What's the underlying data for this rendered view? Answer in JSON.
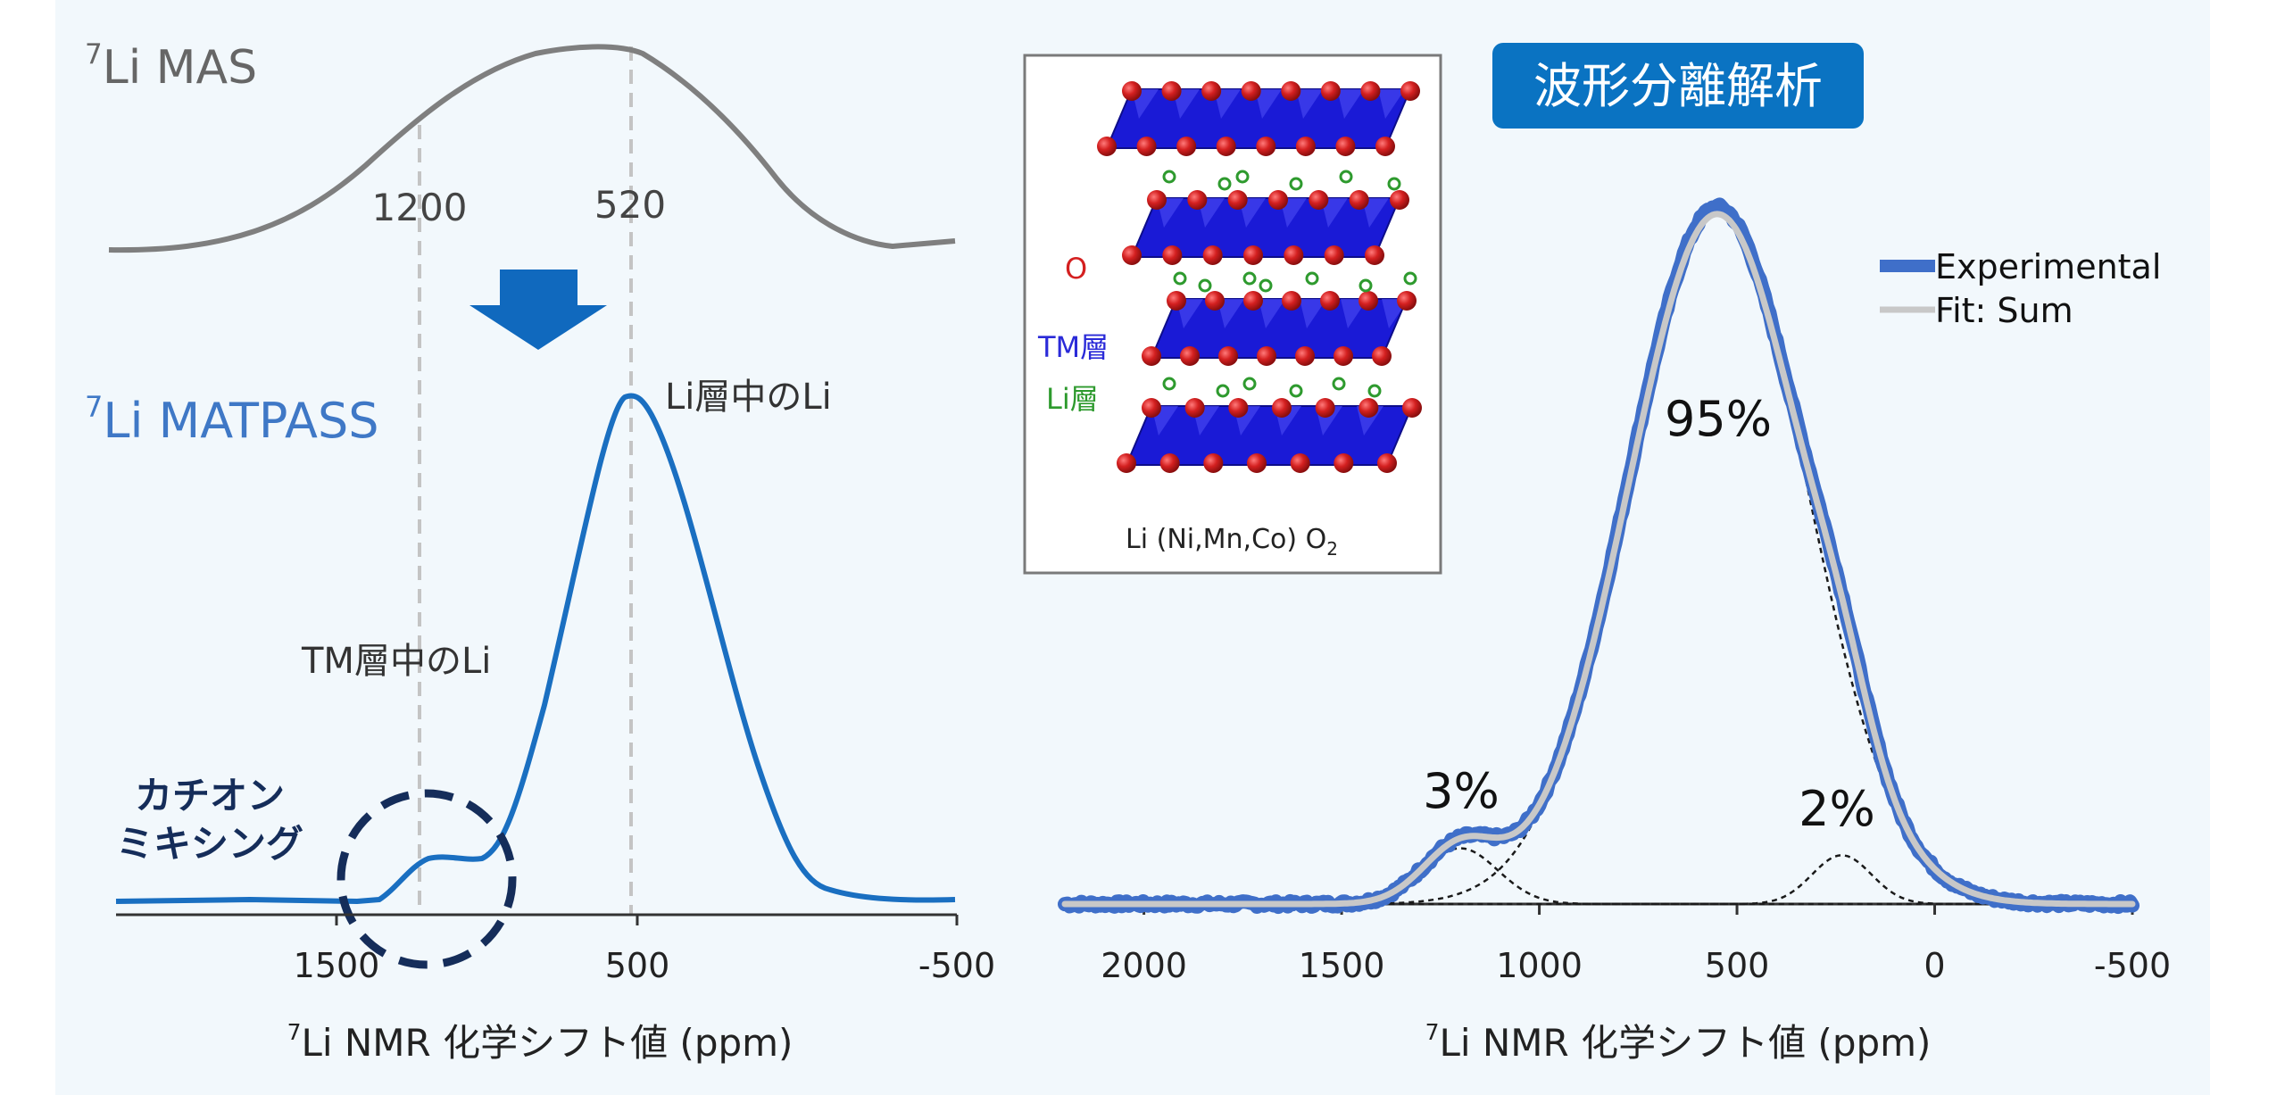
{
  "left_panel": {
    "mas_label": {
      "sup": "7",
      "main": "Li MAS"
    },
    "matpass_label": {
      "sup": "7",
      "main": "Li MATPASS"
    },
    "peak_labels": [
      "1200",
      "520"
    ],
    "arrow_color": "#1069be",
    "annotation_li_layer": "Li層中のLi",
    "annotation_tm_layer": "TM層中のLi",
    "cation_mixing_lines": [
      "カチオン",
      "ミキシング"
    ],
    "xaxis": {
      "ticks": [
        "1500",
        "500",
        "-500"
      ],
      "label_sup": "7",
      "label_main": "Li NMR 化学シフト値 (ppm)"
    }
  },
  "inset": {
    "legend_o": "O",
    "legend_tm": "TM層",
    "legend_li": "Li層",
    "caption_main": "Li (Ni,Mn,Co) O",
    "caption_sub": "2",
    "colors": {
      "o": "#d42020",
      "tm": "#2a2ad8",
      "li": "#2e9a2e"
    }
  },
  "right_panel": {
    "badge": "波形分離解析",
    "badge_color": "#0a73c2",
    "legend": [
      "Experimental",
      "Fit: Sum"
    ],
    "percent_labels": [
      "95%",
      "3%",
      "2%"
    ],
    "xaxis": {
      "ticks": [
        "2000",
        "1500",
        "1000",
        "500",
        "0",
        "-500"
      ],
      "label_sup": "7",
      "label_main": "Li NMR 化学シフト値 (ppm)"
    }
  },
  "chart_data": [
    {
      "type": "line",
      "name": "7Li MAS",
      "x": [
        2000,
        1500,
        1200,
        800,
        520,
        200,
        -100,
        -500
      ],
      "y": [
        0.02,
        0.35,
        0.74,
        0.97,
        1.0,
        0.55,
        0.12,
        0.04
      ],
      "xlim": [
        2000,
        -500
      ],
      "vlines": [
        1200,
        520
      ],
      "color": "#808080"
    },
    {
      "type": "line",
      "name": "7Li MATPASS",
      "x": [
        2000,
        1500,
        1350,
        1250,
        1200,
        1050,
        900,
        700,
        520,
        300,
        100,
        -100,
        -500
      ],
      "y": [
        0.0,
        0.0,
        0.01,
        0.09,
        0.12,
        0.12,
        0.3,
        0.7,
        1.0,
        0.6,
        0.15,
        0.02,
        0.0
      ],
      "xlim": [
        2000,
        -500
      ],
      "xticks": [
        1500,
        500,
        -500
      ],
      "color": "#1a6fc1"
    },
    {
      "type": "line",
      "title": "波形分離解析",
      "xlim": [
        2200,
        -500
      ],
      "xticks": [
        2000,
        1500,
        1000,
        500,
        0,
        -500
      ],
      "series": [
        {
          "name": "Experimental",
          "color": "#3f6fc9",
          "x": [
            2200,
            1500,
            1350,
            1200,
            1050,
            900,
            750,
            550,
            400,
            300,
            150,
            0,
            -500
          ],
          "y": [
            0.0,
            0.005,
            0.05,
            0.09,
            0.09,
            0.35,
            0.78,
            1.0,
            0.72,
            0.42,
            0.12,
            0.01,
            0.0
          ]
        },
        {
          "name": "Fit: Sum",
          "color": "#c8c8c8",
          "x": [
            2200,
            1500,
            1350,
            1200,
            1050,
            900,
            750,
            550,
            400,
            300,
            150,
            0,
            -500
          ],
          "y": [
            0.0,
            0.005,
            0.05,
            0.09,
            0.09,
            0.35,
            0.78,
            0.99,
            0.72,
            0.42,
            0.12,
            0.01,
            0.0
          ]
        }
      ],
      "components": [
        {
          "label": "95%",
          "center": 550,
          "height": 1.0
        },
        {
          "label": "3%",
          "center": 1200,
          "height": 0.08
        },
        {
          "label": "2%",
          "center": 235,
          "height": 0.07
        }
      ]
    }
  ]
}
